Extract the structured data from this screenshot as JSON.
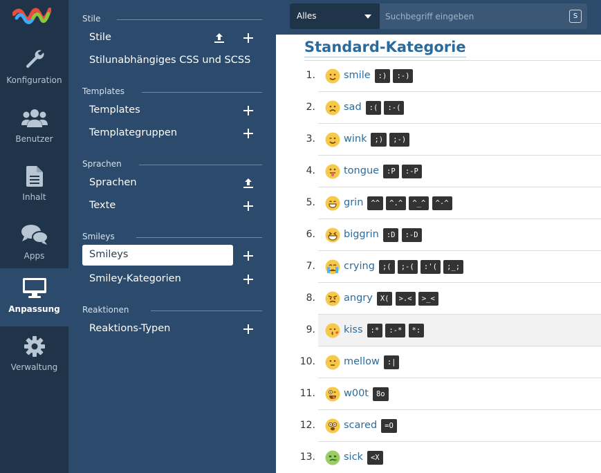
{
  "rail": {
    "items": [
      {
        "label": "Konfiguration"
      },
      {
        "label": "Benutzer"
      },
      {
        "label": "Inhalt"
      },
      {
        "label": "Apps"
      },
      {
        "label": "Anpassung"
      },
      {
        "label": "Verwaltung"
      }
    ]
  },
  "menu": {
    "stile": {
      "header": "Stile",
      "items": [
        "Stile",
        "Stilunabhängiges CSS und SCSS"
      ]
    },
    "templates": {
      "header": "Templates",
      "items": [
        "Templates",
        "Templategruppen"
      ]
    },
    "sprachen": {
      "header": "Sprachen",
      "items": [
        "Sprachen",
        "Texte"
      ]
    },
    "smileys": {
      "header": "Smileys",
      "items": [
        "Smileys",
        "Smiley-Kategorien"
      ]
    },
    "reaktionen": {
      "header": "Reaktionen",
      "items": [
        "Reaktions-Typen"
      ]
    }
  },
  "search": {
    "scope": "Alles",
    "placeholder": "Suchbegriff eingeben",
    "shortcut": "S"
  },
  "category_title": "Standard-Kategorie",
  "smileys": [
    {
      "num": "1.",
      "name": "smile",
      "codes": [
        ":)",
        ":-)"
      ]
    },
    {
      "num": "2.",
      "name": "sad",
      "codes": [
        ":(",
        ":-("
      ]
    },
    {
      "num": "3.",
      "name": "wink",
      "codes": [
        ";)",
        ";-)"
      ]
    },
    {
      "num": "4.",
      "name": "tongue",
      "codes": [
        ":P",
        ":-P"
      ]
    },
    {
      "num": "5.",
      "name": "grin",
      "codes": [
        "^^",
        "^.^",
        "^_^",
        "^-^"
      ]
    },
    {
      "num": "6.",
      "name": "biggrin",
      "codes": [
        ":D",
        ":-D"
      ]
    },
    {
      "num": "7.",
      "name": "crying",
      "codes": [
        ";(",
        ";-(",
        ":'(",
        ";_;"
      ]
    },
    {
      "num": "8.",
      "name": "angry",
      "codes": [
        "X(",
        ">.<",
        ">_<"
      ]
    },
    {
      "num": "9.",
      "name": "kiss",
      "codes": [
        ":*",
        ":-*",
        "*:"
      ]
    },
    {
      "num": "10.",
      "name": "mellow",
      "codes": [
        ":|"
      ]
    },
    {
      "num": "11.",
      "name": "w00t",
      "codes": [
        "8o"
      ]
    },
    {
      "num": "12.",
      "name": "scared",
      "codes": [
        "=O"
      ]
    },
    {
      "num": "13.",
      "name": "sick",
      "codes": [
        "<X"
      ]
    }
  ]
}
